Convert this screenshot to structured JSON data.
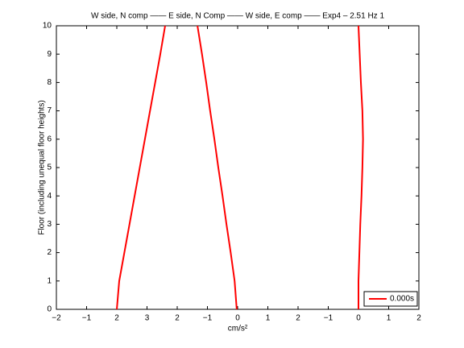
{
  "chart_data": {
    "type": "line",
    "title": "W side, N comp —— E side, N Comp —— W side, E comp —— Exp4 – 2.51 Hz 1",
    "x_label": "cm/s²",
    "y_label": "Floor (including unequal floor heights)",
    "xlim": [
      0,
      12
    ],
    "ylim": [
      0,
      10
    ],
    "xticks": [
      {
        "value": 0,
        "label": "−2"
      },
      {
        "value": 1,
        "label": "−1"
      },
      2,
      3,
      {
        "value": 4,
        "label": "2"
      },
      {
        "value": 5,
        "label": "−1"
      },
      {
        "value": 6,
        "label": "0"
      },
      {
        "value": 7,
        "label": "1"
      },
      {
        "value": 8,
        "label": "2"
      },
      {
        "value": 9,
        "label": "−1"
      },
      {
        "value": 10,
        "label": "0"
      },
      {
        "value": 11,
        "label": "1"
      },
      {
        "value": 12,
        "label": "2"
      }
    ],
    "yticks": [
      0,
      1,
      2,
      3,
      4,
      5,
      6,
      7,
      8,
      9,
      10
    ],
    "legend_position": "lower right",
    "series": [
      {
        "name": "0.000s",
        "color": "#ff0000",
        "x": [
          2.0,
          2.08,
          2.25,
          2.42,
          2.59,
          2.76,
          2.93,
          3.1,
          3.27,
          3.44,
          3.6
        ],
        "values": [
          0,
          1,
          2,
          3,
          4,
          5,
          6,
          7,
          8,
          9,
          10
        ]
      },
      {
        "color": "#ff0000",
        "x": [
          5.97,
          5.9,
          5.77,
          5.63,
          5.5,
          5.36,
          5.23,
          5.09,
          4.96,
          4.82,
          4.67
        ],
        "values": [
          0,
          1,
          2,
          3,
          4,
          5,
          6,
          7,
          8,
          9,
          10
        ]
      },
      {
        "color": "#ff0000",
        "x": [
          10.0,
          10.0,
          10.03,
          10.06,
          10.1,
          10.13,
          10.15,
          10.13,
          10.08,
          10.04,
          10.0
        ],
        "values": [
          0,
          1,
          2,
          3,
          4,
          5,
          6,
          7,
          8,
          9,
          10
        ]
      }
    ]
  }
}
